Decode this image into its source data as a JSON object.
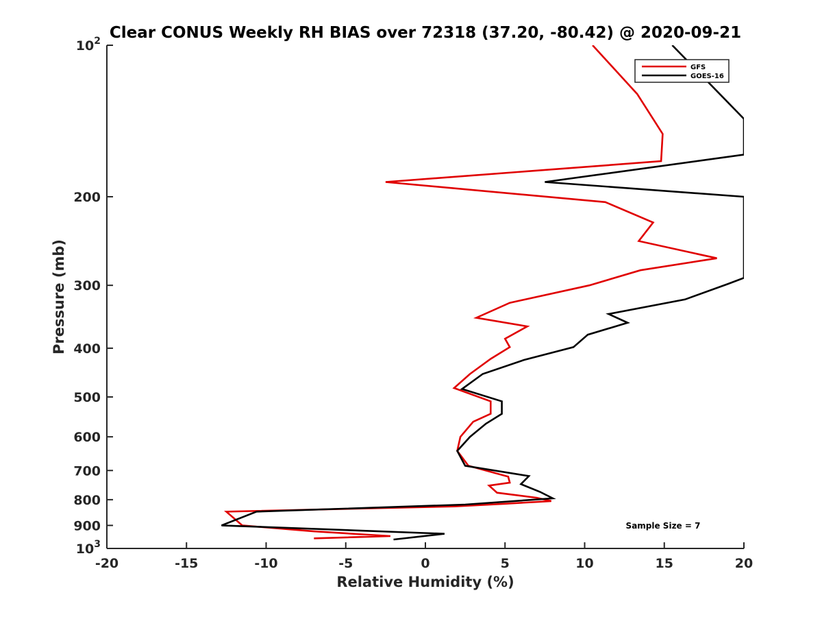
{
  "chart_data": {
    "type": "line",
    "title": "Clear CONUS Weekly RH BIAS over 72318 (37.20, -80.42) @ 2020-09-21",
    "xlabel": "Relative Humidity (%)",
    "ylabel": "Pressure (mb)",
    "xlim": [
      -20,
      20
    ],
    "ylim": [
      100,
      1000
    ],
    "y_scale": "log",
    "y_reversed": true,
    "grid": false,
    "legend_position": "top-right",
    "x_ticks": [
      "-20",
      "-15",
      "-10",
      "-5",
      "0",
      "5",
      "10",
      "15",
      "20"
    ],
    "y_ticks": [
      {
        "value": 100,
        "base": "10",
        "exp": "2"
      },
      {
        "value": 200,
        "label": "200"
      },
      {
        "value": 300,
        "label": "300"
      },
      {
        "value": 400,
        "label": "400"
      },
      {
        "value": 500,
        "label": "500"
      },
      {
        "value": 600,
        "label": "600"
      },
      {
        "value": 700,
        "label": "700"
      },
      {
        "value": 800,
        "label": "800"
      },
      {
        "value": 900,
        "label": "900"
      },
      {
        "value": 1000,
        "base": "10",
        "exp": "3"
      }
    ],
    "series": [
      {
        "name": "GFS",
        "color": "#e00000",
        "points": [
          [
            10.5,
            100
          ],
          [
            13.3,
            125
          ],
          [
            14.9,
            150
          ],
          [
            14.8,
            170
          ],
          [
            -2.5,
            187
          ],
          [
            11.3,
            205
          ],
          [
            14.3,
            225
          ],
          [
            13.4,
            245
          ],
          [
            18.3,
            265
          ],
          [
            13.5,
            280
          ],
          [
            10.3,
            300
          ],
          [
            5.3,
            325
          ],
          [
            3.2,
            348
          ],
          [
            6.4,
            362
          ],
          [
            5.0,
            383
          ],
          [
            5.3,
            398
          ],
          [
            4.1,
            420
          ],
          [
            2.8,
            450
          ],
          [
            1.8,
            480
          ],
          [
            4.1,
            510
          ],
          [
            4.1,
            540
          ],
          [
            3.0,
            560
          ],
          [
            2.2,
            600
          ],
          [
            2.0,
            640
          ],
          [
            2.7,
            685
          ],
          [
            5.2,
            720
          ],
          [
            5.3,
            740
          ],
          [
            4.0,
            750
          ],
          [
            4.5,
            775
          ],
          [
            7.0,
            793
          ],
          [
            7.9,
            805
          ],
          [
            5.0,
            815
          ],
          [
            1.8,
            825
          ],
          [
            -12.5,
            845
          ],
          [
            -11.5,
            900
          ],
          [
            -7.0,
            925
          ],
          [
            -2.2,
            945
          ],
          [
            -7.0,
            955
          ]
        ]
      },
      {
        "name": "GOES-16",
        "color": "#000000",
        "points": [
          [
            15.5,
            100
          ],
          [
            20.0,
            140
          ],
          [
            20.0,
            165
          ],
          [
            7.5,
            187
          ],
          [
            20.0,
            200
          ],
          [
            20.0,
            290
          ],
          [
            19.0,
            298
          ],
          [
            16.3,
            320
          ],
          [
            11.5,
            342
          ],
          [
            12.7,
            356
          ],
          [
            10.2,
            376
          ],
          [
            9.3,
            398
          ],
          [
            6.2,
            422
          ],
          [
            3.6,
            450
          ],
          [
            2.3,
            482
          ],
          [
            4.8,
            510
          ],
          [
            4.8,
            540
          ],
          [
            3.8,
            565
          ],
          [
            2.8,
            600
          ],
          [
            2.0,
            640
          ],
          [
            2.5,
            685
          ],
          [
            6.5,
            718
          ],
          [
            6.0,
            745
          ],
          [
            7.2,
            772
          ],
          [
            8.0,
            795
          ],
          [
            2.5,
            818
          ],
          [
            -10.6,
            845
          ],
          [
            -12.8,
            900
          ],
          [
            1.2,
            935
          ],
          [
            -2.0,
            960
          ]
        ]
      }
    ],
    "legend": [
      {
        "name": "GFS",
        "color": "#e00000"
      },
      {
        "name": "GOES-16",
        "color": "#000000"
      }
    ],
    "annotation": "Sample Size = 7"
  }
}
